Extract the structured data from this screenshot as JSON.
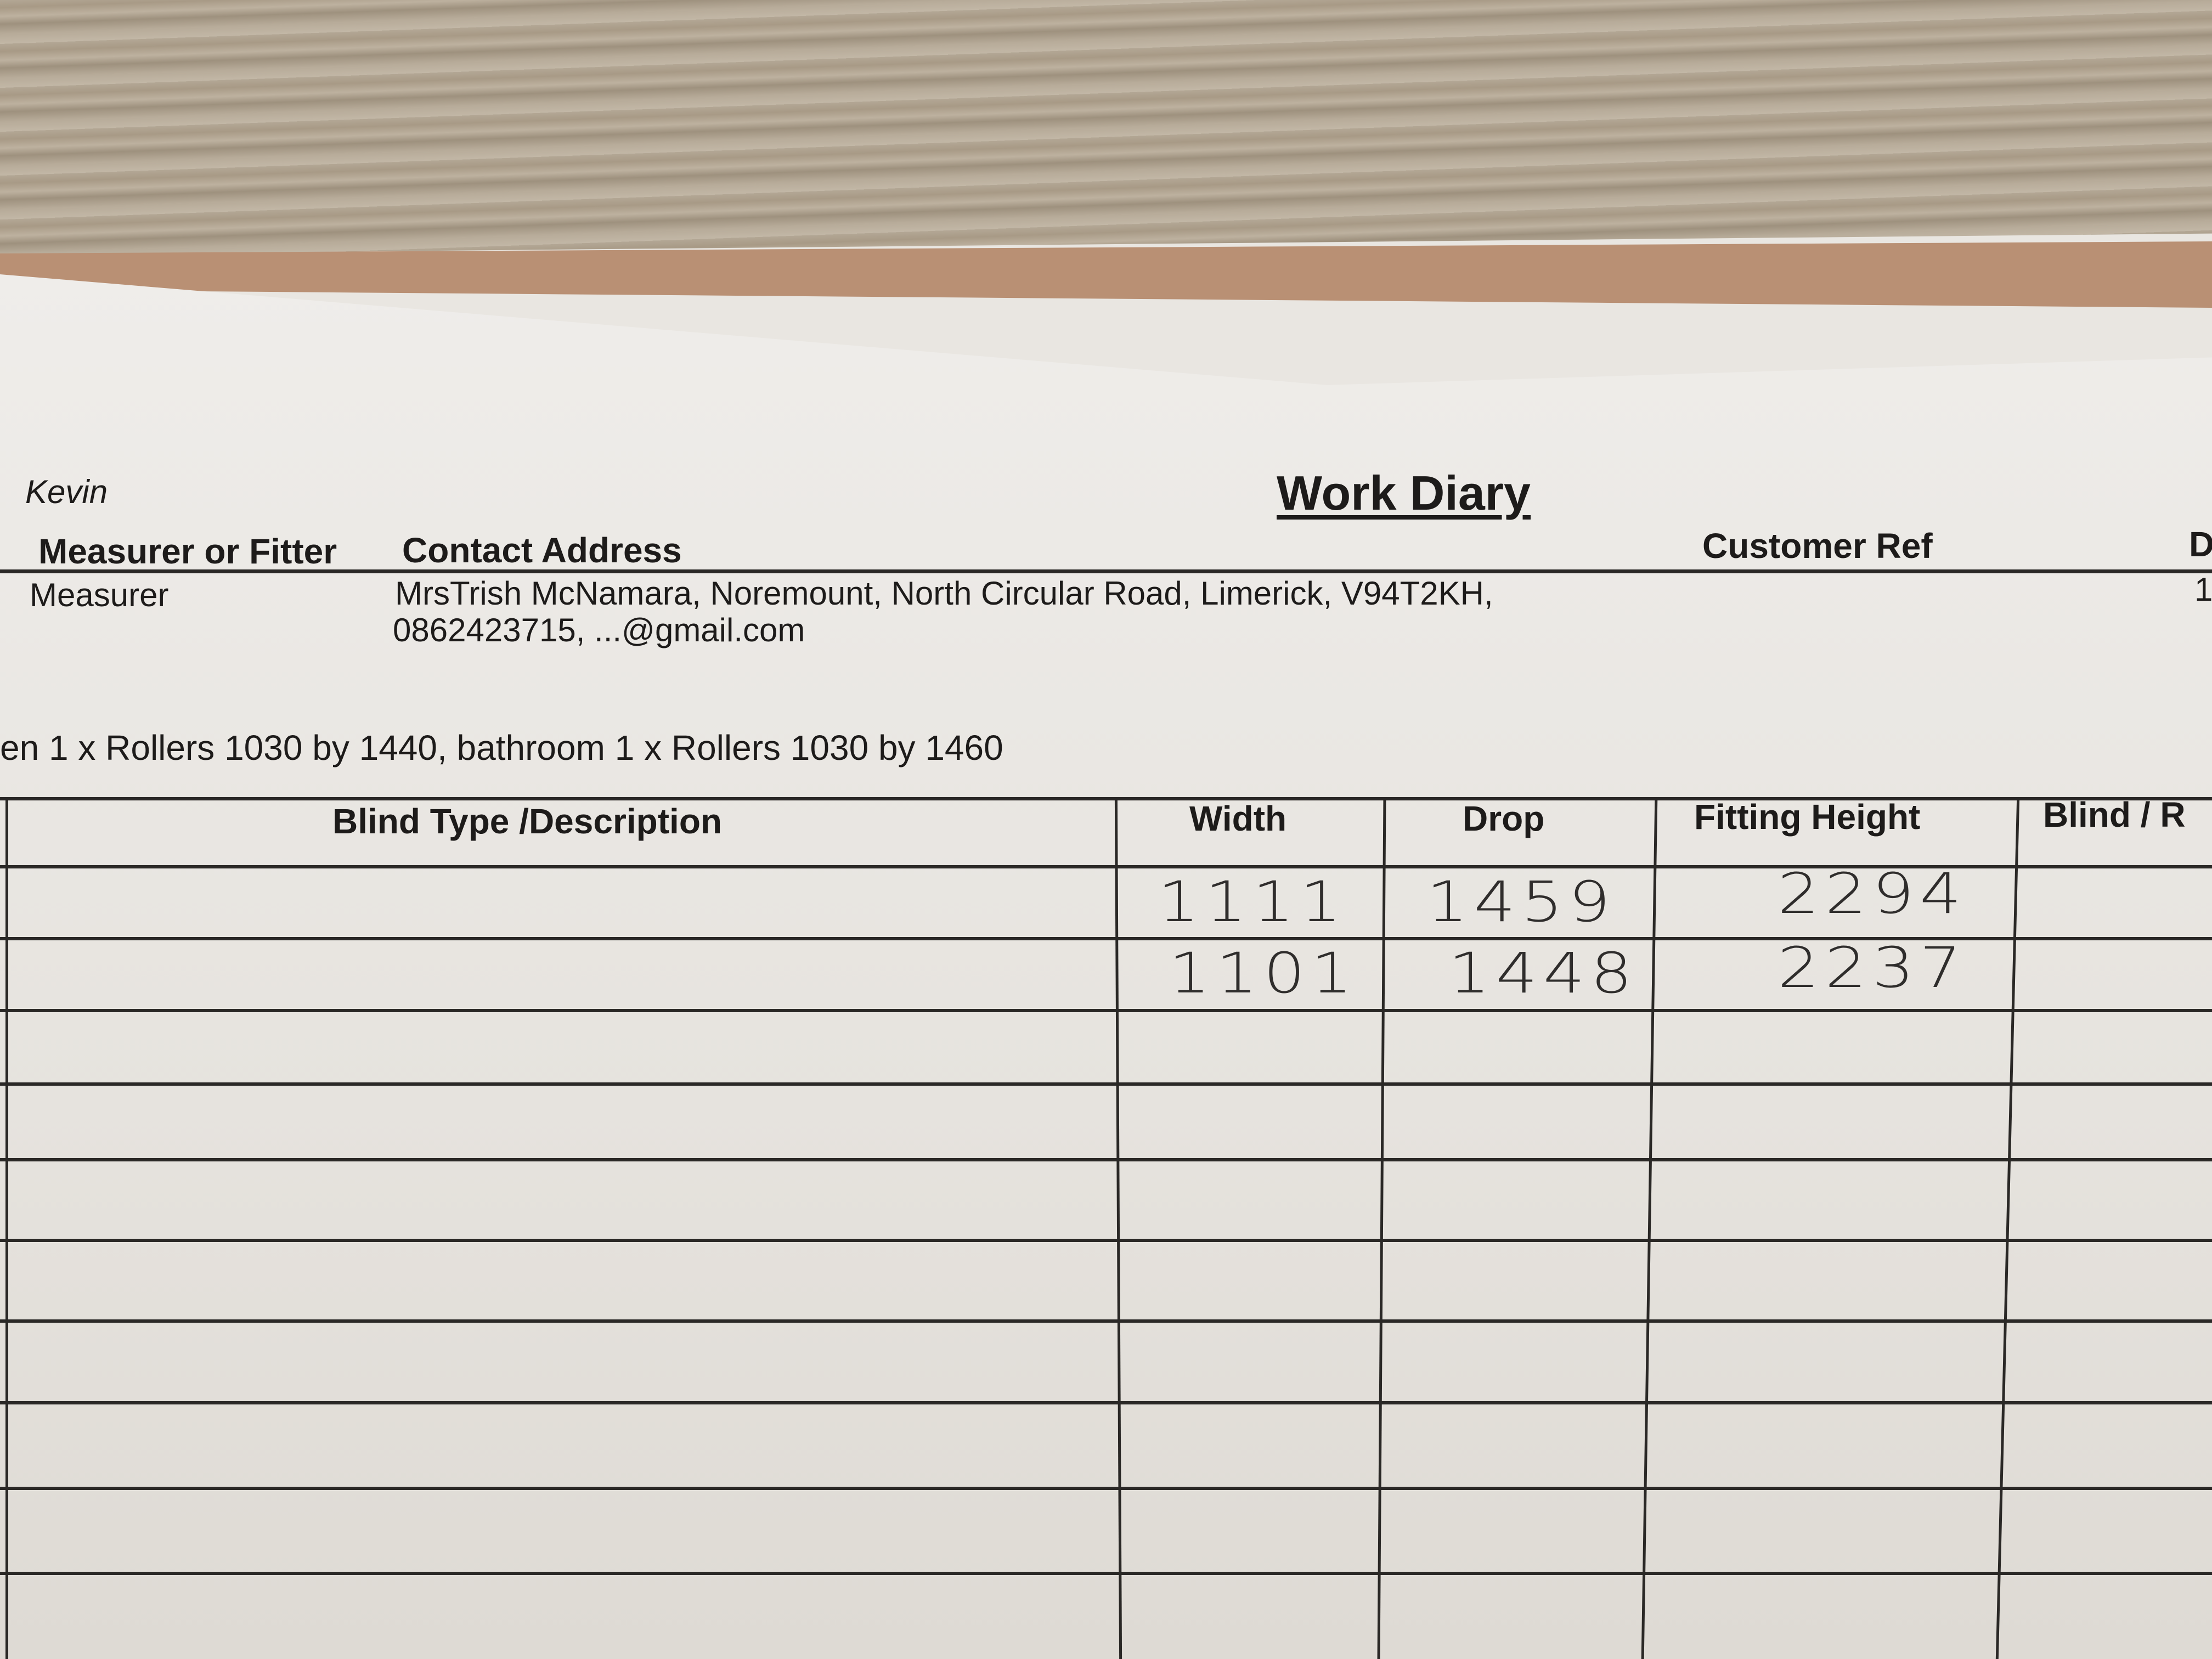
{
  "header": {
    "name": "Kevin",
    "title": "Work Diary",
    "labels": {
      "measurer_or_fitter": "Measurer or Fitter",
      "contact_address": "Contact Address",
      "customer_ref": "Customer Ref",
      "date_partial": "D"
    },
    "values": {
      "role": "Measurer",
      "address_line1": "MrsTrish McNamara, Noremount, North Circular Road, Limerick, V94T2KH,",
      "address_line2": "0862423715, ...@gmail.com",
      "date_partial": "1"
    }
  },
  "notes": "en 1 x Rollers 1030 by 1440, bathroom 1 x Rollers 1030 by 1460",
  "table": {
    "columns": [
      "Blind Type /Description",
      "Width",
      "Drop",
      "Fitting Height",
      "Blind / R"
    ],
    "rows": [
      {
        "description": "",
        "width": "1111",
        "drop": "1459",
        "fitting_height": "2294"
      },
      {
        "description": "",
        "width": "1101",
        "drop": "1448",
        "fitting_height": "2237"
      }
    ]
  }
}
